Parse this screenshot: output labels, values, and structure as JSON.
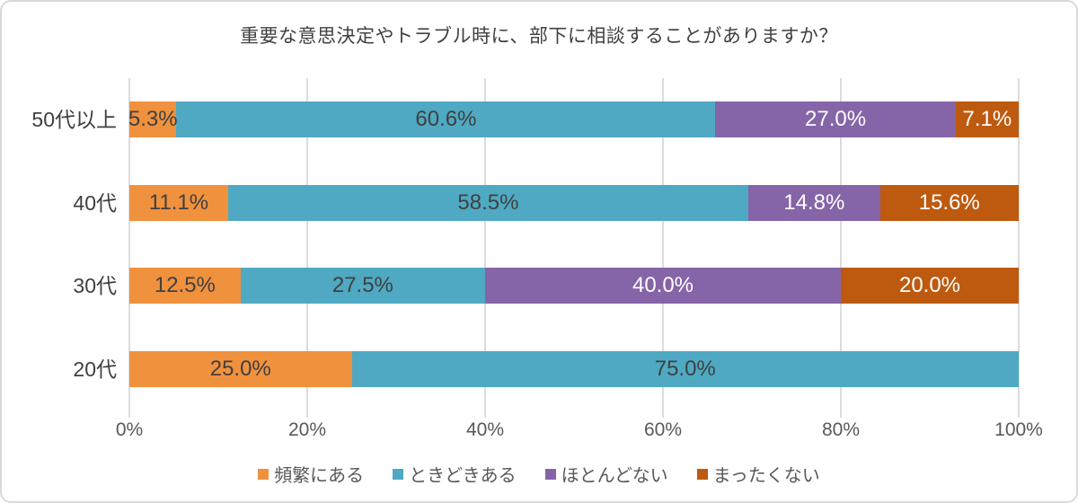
{
  "chart_data": {
    "type": "bar",
    "orientation": "horizontal",
    "stacked": true,
    "title": "重要な意思決定やトラブル時に、部下に相談することがありますか？",
    "categories": [
      "50代以上",
      "40代",
      "30代",
      "20代"
    ],
    "series": [
      {
        "name": "頻繁にある",
        "color": "#f0913e",
        "label_color": "#404040",
        "values": [
          5.3,
          11.1,
          12.5,
          25.0
        ]
      },
      {
        "name": "ときどきある",
        "color": "#4fa9c3",
        "label_color": "#404040",
        "values": [
          60.6,
          58.5,
          27.5,
          75.0
        ]
      },
      {
        "name": "ほとんどない",
        "color": "#8564a8",
        "label_color": "#ffffff",
        "values": [
          27.0,
          14.8,
          40.0,
          0
        ]
      },
      {
        "name": "まったくない",
        "color": "#bd5a0f",
        "label_color": "#ffffff",
        "values": [
          7.1,
          15.6,
          20.0,
          0
        ]
      }
    ],
    "x_ticks": [
      {
        "label": "0%",
        "value": 0
      },
      {
        "label": "20%",
        "value": 20
      },
      {
        "label": "40%",
        "value": 40
      },
      {
        "label": "60%",
        "value": 60
      },
      {
        "label": "80%",
        "value": 80
      },
      {
        "label": "100%",
        "value": 100
      }
    ],
    "xlim": [
      0,
      100
    ],
    "value_suffix": "%",
    "value_decimals": 1,
    "grid": true,
    "grid_color": "#dcdcde",
    "legend_position": "bottom"
  }
}
